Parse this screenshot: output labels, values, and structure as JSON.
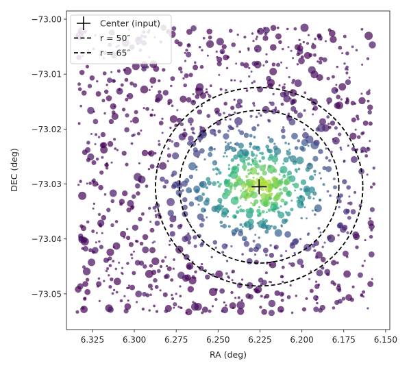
{
  "chart_data": {
    "type": "scatter",
    "title": "",
    "xlabel": "RA (deg)",
    "ylabel": "DEC (deg)",
    "x_inverted": true,
    "xlim": [
      6.3405,
      6.1475
    ],
    "ylim": [
      -73.0565,
      -72.9985
    ],
    "xticks": [
      6.325,
      6.3,
      6.275,
      6.25,
      6.225,
      6.2,
      6.175,
      6.15
    ],
    "xtick_labels": [
      "6.325",
      "6.300",
      "6.275",
      "6.250",
      "6.225",
      "6.200",
      "6.175",
      "6.150"
    ],
    "yticks": [
      -73.0,
      -73.01,
      -73.02,
      -73.03,
      -73.04,
      -73.05
    ],
    "ytick_labels": [
      "−73.00",
      "−73.01",
      "−73.02",
      "−73.03",
      "−73.04",
      "−73.05"
    ],
    "grid": false,
    "legend_position": "upper-left",
    "colormap": "viridis",
    "center": {
      "ra": 6.2255,
      "dec": -73.0305
    },
    "circles": [
      {
        "name": "r = 50″",
        "radius_arcsec": 50
      },
      {
        "name": "r = 65″",
        "radius_arcsec": 65
      }
    ],
    "legend": [
      {
        "label": "Center (input)",
        "marker": "plus"
      },
      {
        "label": "r = 50″",
        "marker": "dashed-line"
      },
      {
        "label": "r = 65″",
        "marker": "dashed-line"
      }
    ],
    "points": {
      "description": "≈1400 stars uniformly spread over the field, denser and brighter (higher density color) toward the center",
      "ra_range": [
        6.157,
        6.334
      ],
      "dec_range": [
        -73.0535,
        -73.0015
      ],
      "count": 1400
    }
  }
}
